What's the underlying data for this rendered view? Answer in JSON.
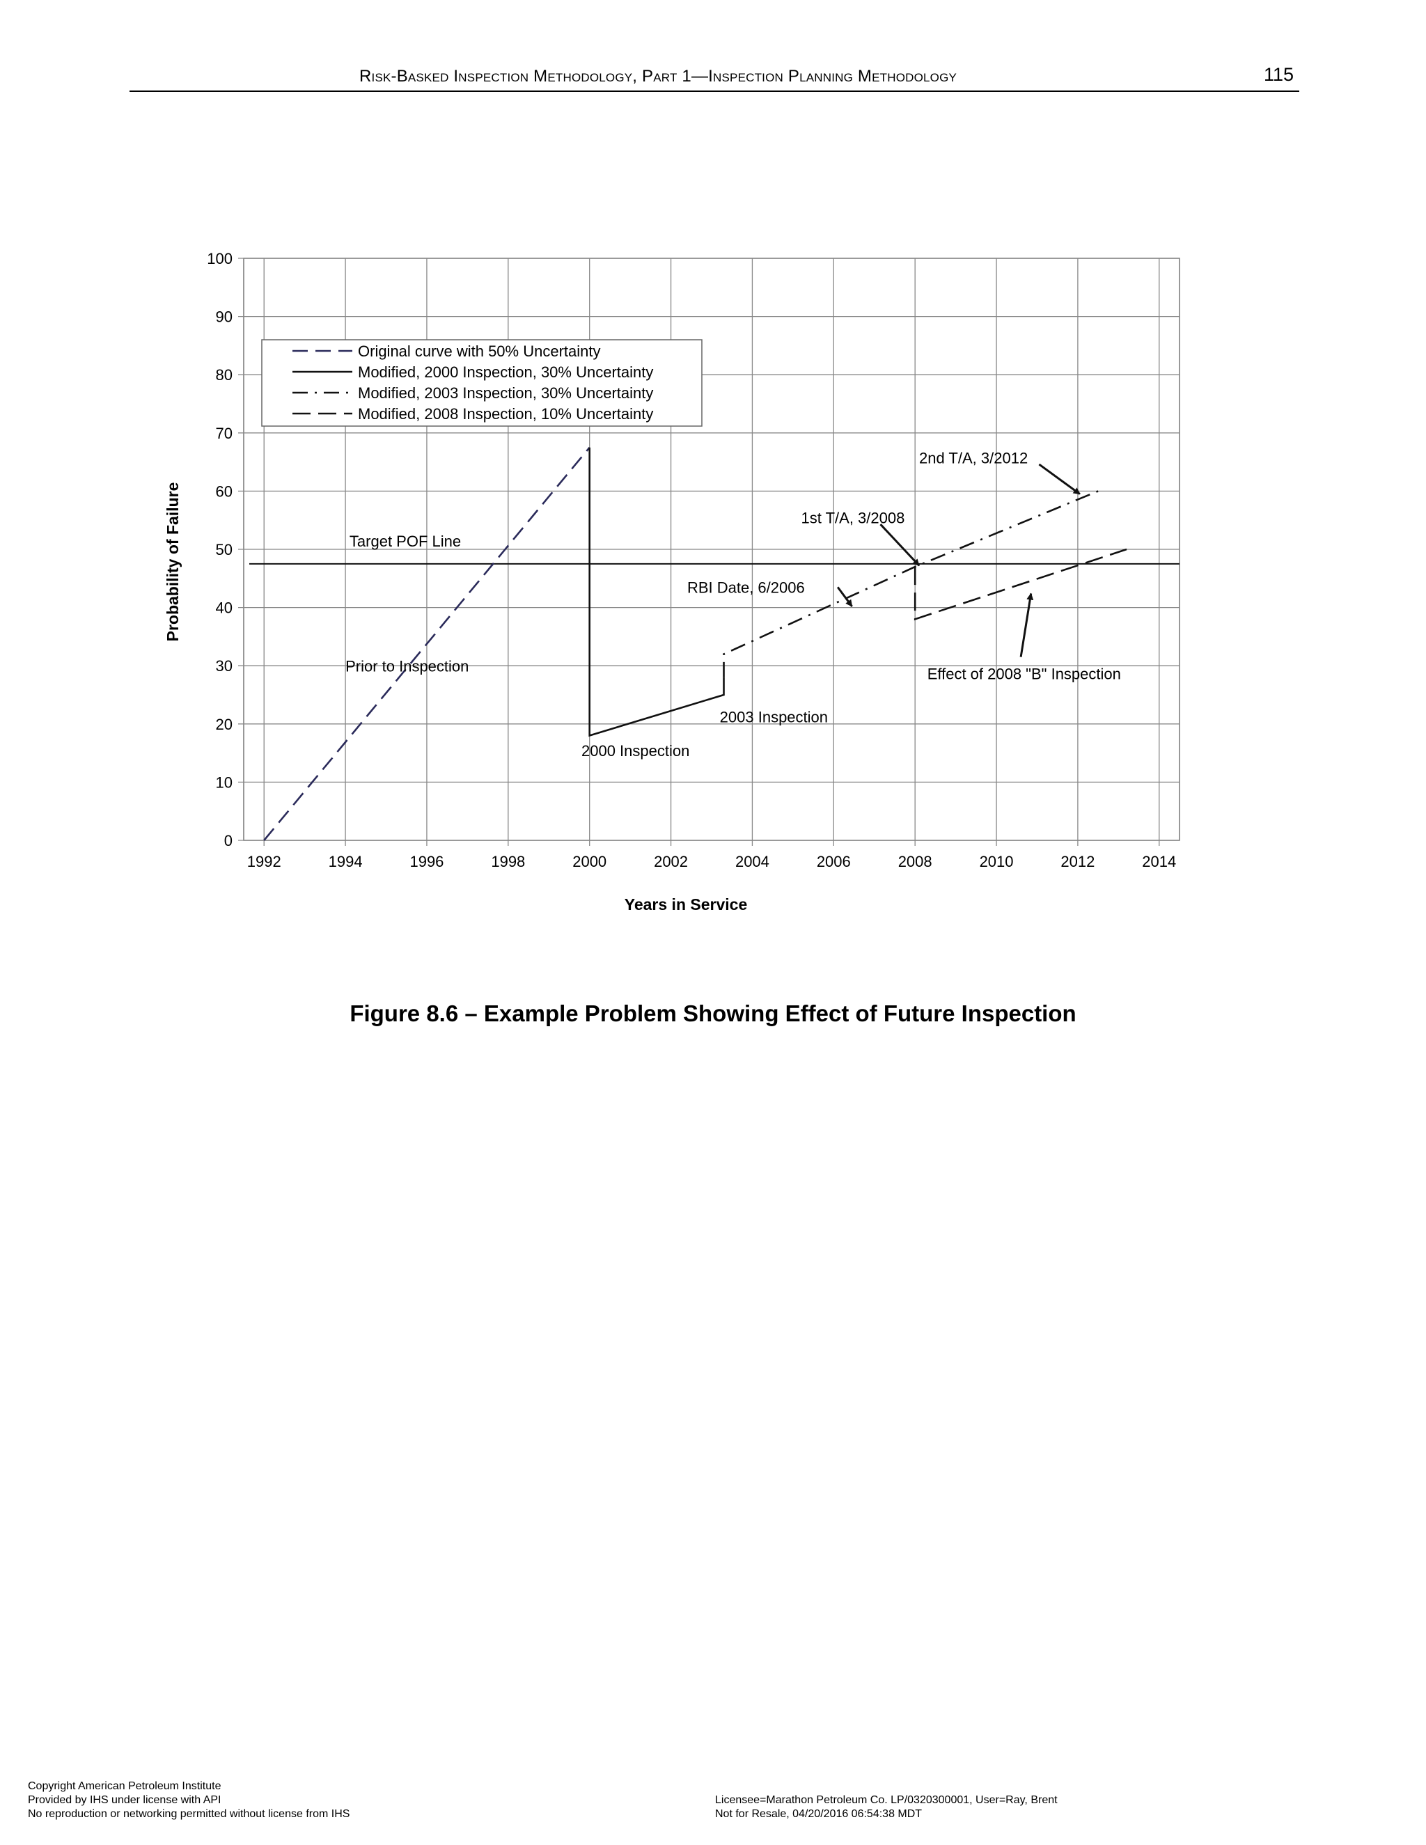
{
  "header": {
    "title": "Risk-Basked Inspection Methodology, Part 1—Inspection Planning Methodology",
    "page_number": "115"
  },
  "caption": "Figure 8.6 – Example Problem Showing Effect of Future Inspection",
  "footer": {
    "left": [
      "Copyright American Petroleum Institute",
      "Provided by IHS under license with API",
      "No reproduction or networking permitted without license from IHS"
    ],
    "right": [
      "Licensee=Marathon Petroleum Co. LP/0320300001, User=Ray, Brent",
      "Not for Resale, 04/20/2016 06:54:38 MDT"
    ]
  },
  "chart_data": {
    "type": "line",
    "title": "",
    "xlabel": "Years in Service",
    "ylabel": "Probability of Failure",
    "xlim": [
      1991.5,
      2014.5
    ],
    "ylim": [
      0,
      100
    ],
    "x_ticks": [
      1992,
      1994,
      1996,
      1998,
      2000,
      2002,
      2004,
      2006,
      2008,
      2010,
      2012,
      2014
    ],
    "y_ticks": [
      0,
      10,
      20,
      30,
      40,
      50,
      60,
      70,
      80,
      90,
      100
    ],
    "grid": true,
    "legend_position": "top-left",
    "target_line": {
      "label": "Target POF Line",
      "y": 47.5
    },
    "series": [
      {
        "name": "Original curve with 50% Uncertainty",
        "style": "dashed",
        "color": "#2a2a5a",
        "points": [
          [
            1992,
            0
          ],
          [
            2000,
            67.5
          ]
        ]
      },
      {
        "name": "Modified, 2000 Inspection, 30% Uncertainty",
        "style": "solid",
        "color": "#111111",
        "points": [
          [
            2000,
            67.5
          ],
          [
            2000,
            18
          ],
          [
            2003.3,
            25
          ],
          [
            2003.3,
            28
          ]
        ]
      },
      {
        "name": "Modified, 2003 Inspection, 30% Uncertainty",
        "style": "dashdot",
        "color": "#111111",
        "points": [
          [
            2003.3,
            28
          ],
          [
            2003.3,
            32
          ],
          [
            2008,
            47
          ],
          [
            2012.5,
            60
          ]
        ]
      },
      {
        "name": "Modified, 2008 Inspection, 10% Uncertainty",
        "style": "longdash",
        "color": "#111111",
        "points": [
          [
            2008,
            47
          ],
          [
            2008,
            38
          ],
          [
            2013.2,
            50
          ]
        ]
      }
    ],
    "annotations": [
      {
        "text": "Target POF Line",
        "x": 1994.1,
        "y": 50.5
      },
      {
        "text": "Prior to Inspection",
        "x": 1994,
        "y": 29
      },
      {
        "text": "2000 Inspection",
        "x": 1999.8,
        "y": 14.5
      },
      {
        "text": "2003 Inspection",
        "x": 2003.2,
        "y": 20.3
      },
      {
        "text": "RBI Date, 6/2006",
        "x": 2002.4,
        "y": 42.5
      },
      {
        "text": "1st T/A, 3/2008",
        "x": 2005.2,
        "y": 54.5
      },
      {
        "text": "2nd T/A, 3/2012",
        "x": 2008.1,
        "y": 64.8
      },
      {
        "text": "Effect of 2008 \"B\" Inspection",
        "x": 2008.3,
        "y": 27.7
      }
    ],
    "arrows": [
      {
        "from": [
          2006.1,
          43.5
        ],
        "to": [
          2006.45,
          40.2
        ]
      },
      {
        "from": [
          2007.15,
          54.3
        ],
        "to": [
          2008.1,
          47.2
        ]
      },
      {
        "from": [
          2011.05,
          64.6
        ],
        "to": [
          2012.05,
          59.5
        ]
      },
      {
        "from": [
          2010.6,
          31.5
        ],
        "to": [
          2010.85,
          42.4
        ]
      }
    ]
  }
}
